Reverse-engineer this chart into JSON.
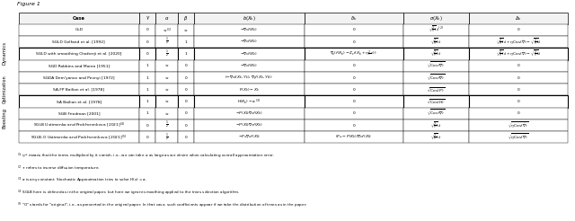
{
  "title": "Figure 1",
  "header": [
    "Case",
    "γ",
    "α",
    "β",
    "b(X_k)",
    "δ_k",
    "σ(X_k)",
    "Δ_k"
  ],
  "dynamics_rows": [
    {
      "case": "GLD",
      "gamma": "0",
      "alpha": "$\\infty^{(1)}$",
      "beta": "$\\infty$",
      "b": "$-\\nabla_x f(X_k)$",
      "delta": "0",
      "sigma": "$\\sqrt{\\frac{2}{\\tau}}I_d$",
      "sigma_sup": "(2)",
      "Delta": "0"
    },
    {
      "case": "SGLD Gelfand et al. [1992]",
      "gamma": "0",
      "alpha": "$\\frac{1}{2}$",
      "beta": "1",
      "b": "$-\\nabla_x f(X_k)$",
      "delta": "0",
      "sigma": "$\\sqrt{\\frac{2}{\\tau}}I_d$",
      "sigma_sup": "",
      "Delta": "$\\sqrt{\\frac{2}{\\tau}}I_d + \\eta\\mathrm{Cov}(\\tilde{\\nabla}) - \\sqrt{\\frac{2}{\\tau}}I_d$"
    },
    {
      "case": "SGLD with smoothing Chatterji et al. [2020]",
      "gamma": "0",
      "alpha": "$\\frac{1}{2}$",
      "beta": "1",
      "b": "$-\\nabla_x f(X_k)$",
      "delta": "$\\nabla_x(f(X_k) - \\mathbb{E}_\\varepsilon f(X_k + \\eta\\frac{2}{\\tau}\\varepsilon))$",
      "sigma": "$\\sqrt{\\frac{2}{\\tau}}I_d$",
      "sigma_sup": "",
      "Delta": "$\\sqrt{\\frac{2}{\\tau}}I_d + \\eta\\mathrm{Cov}(\\tilde{\\nabla}) - \\sqrt{\\frac{2}{\\tau}}I_d$"
    }
  ],
  "opt_rows": [
    {
      "case": "SGD Robbins and Monro [1951]",
      "gamma": "1",
      "alpha": "$\\infty$",
      "beta": "0",
      "b": "$-\\nabla_x f(X_k)$",
      "delta": "0",
      "sigma": "$\\sqrt{\\mathrm{Cov}(\\tilde{\\nabla})}$",
      "Delta": "0"
    },
    {
      "case": "SGDA Dem'yanov and Pevnyi [1972]",
      "gamma": "1",
      "alpha": "$\\infty$",
      "beta": "0",
      "b": "$(-\\nabla_x f(X_k, Y_k), \\nabla_y f(X_k, Y_k))$",
      "delta": "0",
      "sigma": "$\\sqrt{\\mathrm{Cov}(\\tilde{\\nabla})}$",
      "Delta": "0"
    },
    {
      "case": "SA-FP Bailion et al. [1978]",
      "gamma": "1",
      "alpha": "$\\infty$",
      "beta": "0",
      "b": "$F(X_k) - X_k$",
      "delta": "0",
      "sigma": "$\\sqrt{\\mathrm{Cov}(\\tilde{P})}$",
      "Delta": "0"
    },
    {
      "case": "SA Bailion et al. [1978]",
      "gamma": "1",
      "alpha": "$\\infty$",
      "beta": "0",
      "b": "$H(X_k) - a$",
      "b_sup": "(3)",
      "delta": "0",
      "sigma": "$\\sqrt{\\mathrm{Cov}(\\tilde{H})}$",
      "Delta": "0"
    }
  ],
  "boost_rows": [
    {
      "case": "SGB Friedman [2001]",
      "gamma": "1",
      "alpha": "$\\infty$",
      "beta": "0",
      "b": "$-P(X_k)\\nabla_x f(X_k)$",
      "delta": "0",
      "sigma": "$\\sqrt{\\mathrm{Cov}(\\tilde{\\nabla})}$",
      "Delta": "0"
    },
    {
      "case": "SGLB Ustimenko and Prokhorenkova [2021]",
      "case_sup": "(4)",
      "gamma": "0",
      "alpha": "$\\frac{1}{2}$",
      "beta": "0",
      "b": "$-P(X_k)\\nabla_x f(X_k)$",
      "delta": "0",
      "sigma": "$\\sqrt{\\frac{2}{\\tau}}I_d$",
      "Delta": "$\\sqrt{\\eta\\mathrm{Cov}(\\tilde{\\nabla})}$"
    },
    {
      "case": "SGLB-O Ustimenko and Prokhorenkova [2021]",
      "case_sup": "(5)",
      "gamma": "0",
      "alpha": "$\\frac{1}{2}$",
      "beta": "0",
      "b": "$-P_\\infty\\nabla_x f(X_k)$",
      "delta": "$(P_\\infty - P(X_k))\\nabla_x f(X_k)$",
      "sigma": "$\\sqrt{\\frac{2}{\\tau}}I_d$",
      "Delta": "$\\sqrt{\\eta\\mathrm{Cov}(\\tilde{\\nabla})}$"
    }
  ],
  "footnotes": [
    "$^{(1)}$ $\\eta^\\infty$ means that the terms multiplied by it vanish, i.e., we can take $\\alpha$ as large as we desire when calculating overall approximation error.",
    "$^{(2)}$ $\\tau$ refers to inverse diffusion temperature.",
    "$^{(3)}$ $a$ is any constant. Stochastic Approximation tries to solve $H(x) = a$.",
    "$^{(4)}$ SGLB here is defined as in the original paper, but here we ignore smoothing applied to the trees selection algorithm.",
    "$^{(5)}$ \"O\" stands for \"original\", i.e., as presented in the original paper. In that case, such coefficients appear if we take the distribution of trees as in the paper."
  ]
}
